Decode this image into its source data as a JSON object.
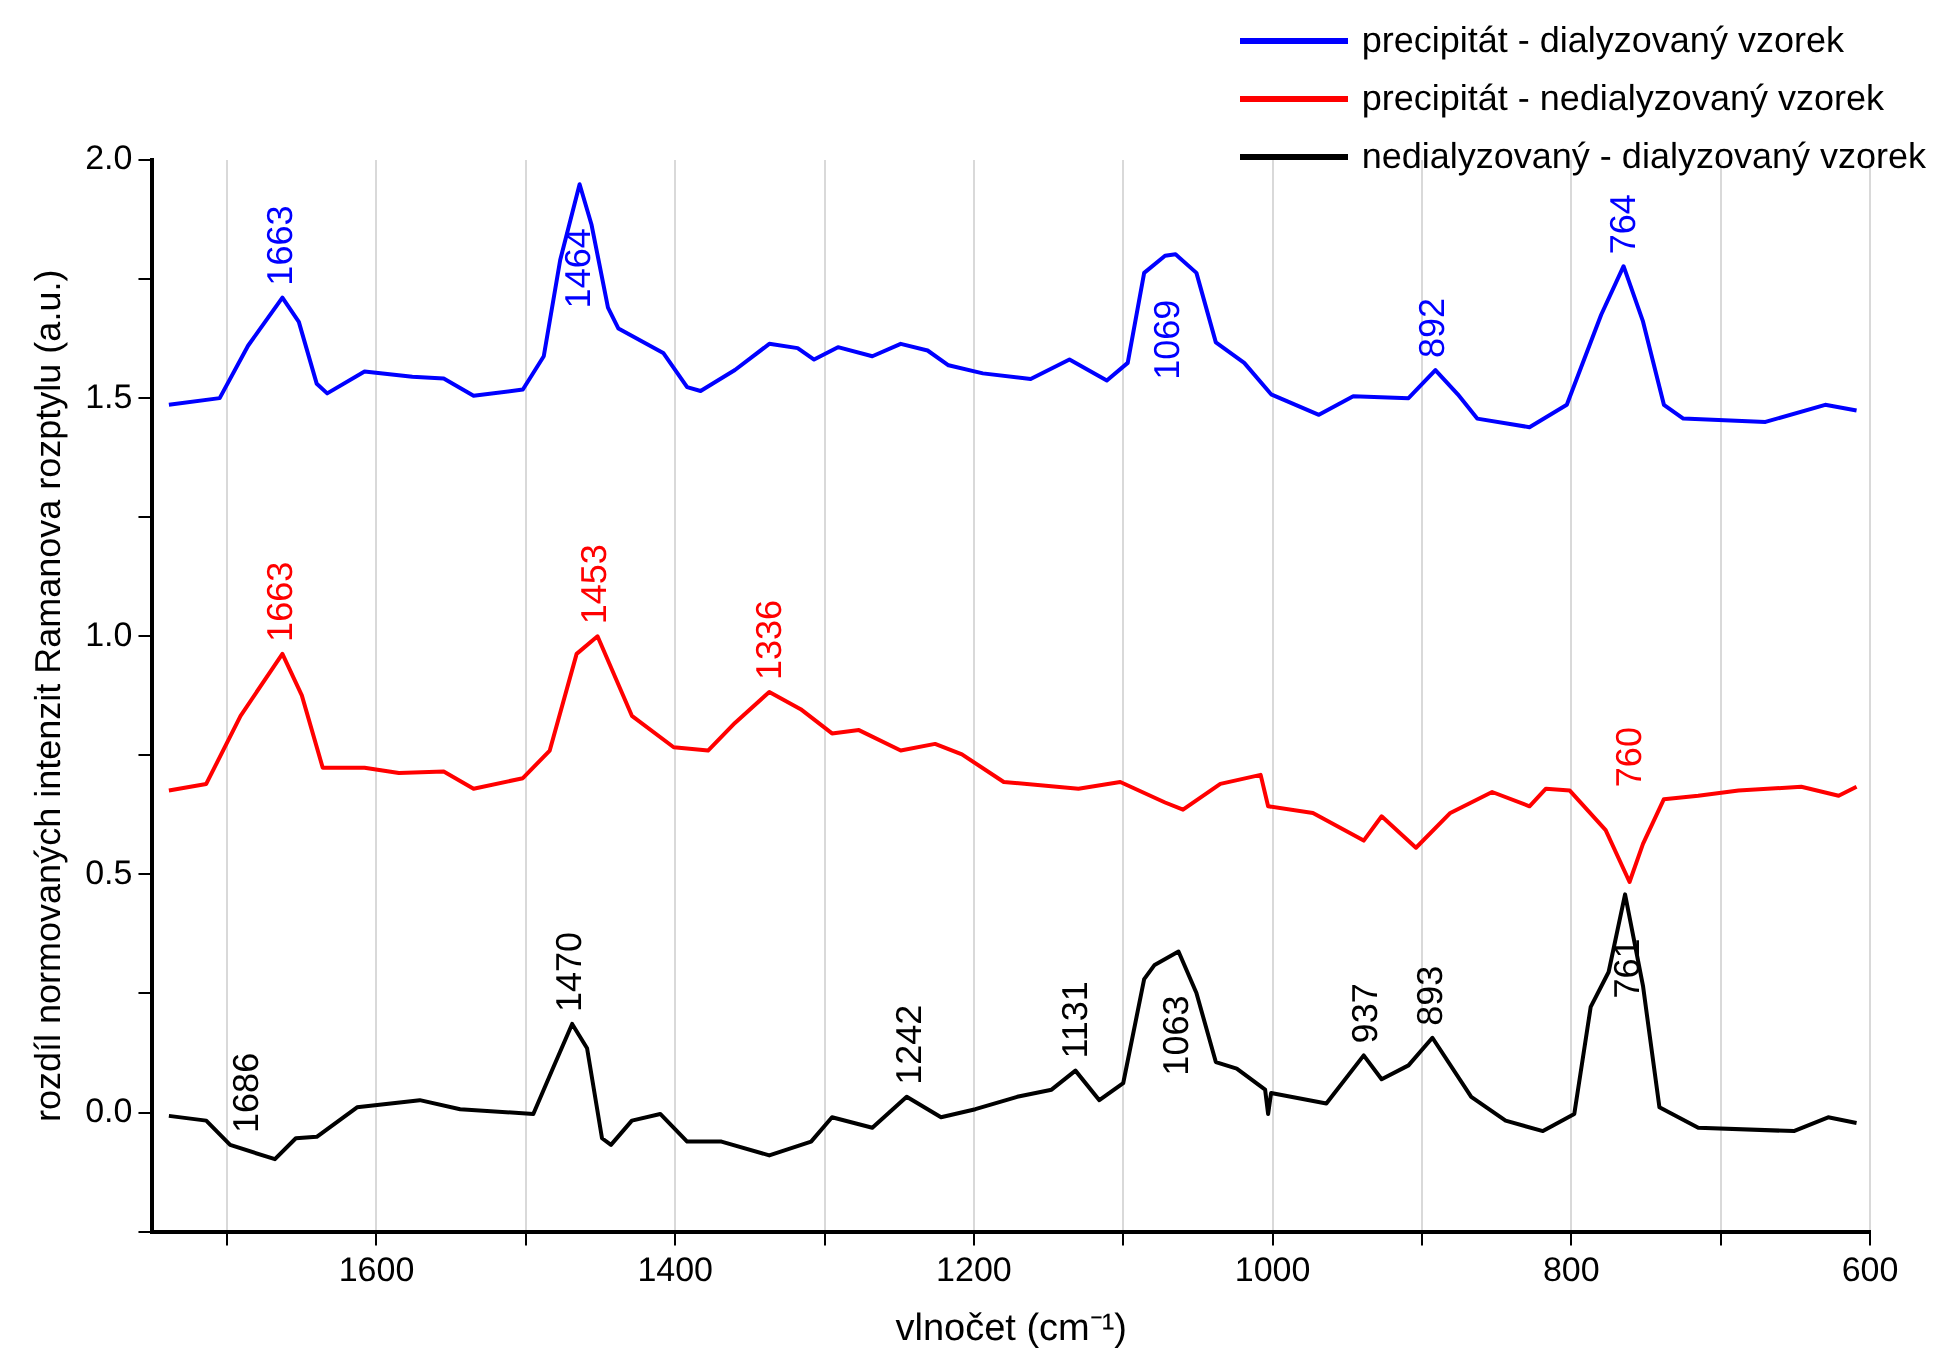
{
  "chart_data": {
    "type": "line",
    "xlabel": "vlnočet (cm⁻¹)",
    "ylabel": "rozdíl normovaných intenzit Ramanova rozptylu (a.u.)",
    "xlim": [
      1750,
      600
    ],
    "ylim": [
      -0.25,
      2.0
    ],
    "xticks": [
      {
        "value": 1700,
        "label": null
      },
      1600,
      {
        "value": 1500,
        "label": null
      },
      1400,
      {
        "value": 1300,
        "label": null
      },
      1200,
      {
        "value": 1100,
        "label": null
      },
      1000,
      {
        "value": 900,
        "label": null
      },
      800,
      {
        "value": 700,
        "label": null
      },
      600
    ],
    "yticks": [
      {
        "value": -0.25,
        "label": null
      },
      {
        "value": 0,
        "label": "0.0"
      },
      {
        "value": 0.25,
        "label": null
      },
      {
        "value": 0.5,
        "label": "0.5"
      },
      {
        "value": 0.75,
        "label": null
      },
      {
        "value": 1,
        "label": "1.0"
      },
      {
        "value": 1.25,
        "label": null
      },
      {
        "value": 1.5,
        "label": "1.5"
      },
      {
        "value": 1.75,
        "label": null
      },
      {
        "value": 2,
        "label": "2.0"
      }
    ],
    "grid": "x",
    "legend": "top right",
    "series": [
      {
        "name": "precipitát - dialyzovaný vzorek",
        "color": "#0000ff",
        "x": [
          1739,
          1705,
          1686,
          1663,
          1652,
          1640,
          1633,
          1608,
          1576,
          1555,
          1535,
          1502,
          1488,
          1477,
          1464,
          1456,
          1445,
          1438,
          1408,
          1392,
          1383,
          1360,
          1337,
          1318,
          1307,
          1291,
          1268,
          1249,
          1231,
          1217,
          1194,
          1162,
          1136,
          1111,
          1097,
          1086,
          1072,
          1065,
          1051,
          1038,
          1019,
          1001,
          969,
          946,
          909,
          891,
          876,
          863,
          828,
          803,
          780,
          765,
          752,
          738,
          725,
          670,
          630,
          609
        ],
        "values": [
          1.486,
          1.5,
          1.61,
          1.711,
          1.66,
          1.53,
          1.51,
          1.556,
          1.545,
          1.541,
          1.505,
          1.518,
          1.588,
          1.79,
          1.949,
          1.864,
          1.69,
          1.646,
          1.595,
          1.523,
          1.515,
          1.559,
          1.614,
          1.605,
          1.581,
          1.607,
          1.588,
          1.614,
          1.6,
          1.569,
          1.552,
          1.54,
          1.581,
          1.537,
          1.574,
          1.763,
          1.799,
          1.802,
          1.763,
          1.617,
          1.574,
          1.508,
          1.465,
          1.504,
          1.5,
          1.559,
          1.508,
          1.457,
          1.439,
          1.486,
          1.675,
          1.777,
          1.661,
          1.486,
          1.457,
          1.45,
          1.486,
          1.474
        ]
      },
      {
        "name": "precipitát - nedialyzovaný vzorek",
        "color": "#ff0000",
        "x": [
          1739,
          1714,
          1691,
          1663,
          1650,
          1636,
          1608,
          1585,
          1555,
          1535,
          1502,
          1484,
          1466,
          1452,
          1429,
          1401,
          1378,
          1360,
          1337,
          1316,
          1295,
          1277,
          1249,
          1226,
          1208,
          1180,
          1130,
          1102,
          1072,
          1060,
          1035,
          1008,
          1003,
          973,
          939,
          927,
          904,
          881,
          853,
          828,
          817,
          801,
          777,
          761,
          752,
          738,
          715,
          688,
          646,
          621,
          609
        ],
        "values": [
          0.676,
          0.69,
          0.833,
          0.963,
          0.876,
          0.724,
          0.724,
          0.713,
          0.716,
          0.68,
          0.702,
          0.76,
          0.963,
          1.0,
          0.833,
          0.767,
          0.76,
          0.818,
          0.883,
          0.847,
          0.796,
          0.803,
          0.76,
          0.774,
          0.752,
          0.694,
          0.68,
          0.694,
          0.651,
          0.636,
          0.69,
          0.709,
          0.643,
          0.629,
          0.571,
          0.622,
          0.556,
          0.629,
          0.673,
          0.643,
          0.68,
          0.676,
          0.593,
          0.484,
          0.564,
          0.658,
          0.665,
          0.676,
          0.684,
          0.665,
          0.684
        ]
      },
      {
        "name": "nedialyzovaný - dialyzovaný vzorek",
        "color": "#000000",
        "x": [
          1739,
          1714,
          1698,
          1668,
          1654,
          1640,
          1613,
          1571,
          1544,
          1495,
          1482,
          1469,
          1459,
          1449,
          1443,
          1429,
          1410,
          1392,
          1369,
          1337,
          1309,
          1295,
          1268,
          1245,
          1222,
          1199,
          1171,
          1148,
          1132,
          1116,
          1100,
          1086,
          1079,
          1063,
          1051,
          1038,
          1024,
          1005,
          1003,
          1001,
          964,
          939,
          927,
          909,
          893,
          867,
          844,
          819,
          798,
          787,
          775,
          764,
          752,
          741,
          715,
          651,
          628,
          609
        ],
        "values": [
          -0.007,
          -0.017,
          -0.068,
          -0.098,
          -0.054,
          -0.051,
          0.011,
          0.026,
          0.007,
          -0.003,
          0.092,
          0.186,
          0.135,
          -0.054,
          -0.068,
          -0.017,
          -0.003,
          -0.061,
          -0.061,
          -0.09,
          -0.061,
          -0.01,
          -0.032,
          0.033,
          -0.01,
          0.007,
          0.033,
          0.048,
          0.088,
          0.026,
          0.062,
          0.28,
          0.31,
          0.338,
          0.251,
          0.106,
          0.092,
          0.048,
          -0.003,
          0.041,
          0.019,
          0.12,
          0.07,
          0.099,
          0.157,
          0.033,
          -0.017,
          -0.039,
          -0.003,
          0.222,
          0.295,
          0.458,
          0.266,
          0.011,
          -0.032,
          -0.039,
          -0.01,
          -0.022
        ]
      }
    ],
    "annotations": [
      {
        "text": "1663",
        "x": 1663,
        "y": 1.711
      },
      {
        "text": "1464",
        "x": 1464,
        "y": 1.949
      },
      {
        "text": "1069",
        "x": 1069,
        "y": 1.799
      },
      {
        "text": "892",
        "x": 892,
        "y": 1.559
      },
      {
        "text": "764",
        "x": 764,
        "y": 1.777
      },
      {
        "text": "1663",
        "x": 1663,
        "y": 0.963
      },
      {
        "text": "1453",
        "x": 1453,
        "y": 1.0
      },
      {
        "text": "1336",
        "x": 1336,
        "y": 0.883
      },
      {
        "text": "760",
        "x": 760,
        "y": 0.484
      },
      {
        "text": "1686",
        "x": 1686,
        "y": -0.098
      },
      {
        "text": "1470",
        "x": 1470,
        "y": 0.186
      },
      {
        "text": "1242",
        "x": 1242,
        "y": 0.033
      },
      {
        "text": "1131",
        "x": 1131,
        "y": 0.088
      },
      {
        "text": "1063",
        "x": 1063,
        "y": 0.338
      },
      {
        "text": "937",
        "x": 937,
        "y": 0.12
      },
      {
        "text": "893",
        "x": 893,
        "y": 0.157
      },
      {
        "text": "761",
        "x": 761,
        "y": 0.458
      }
    ]
  }
}
